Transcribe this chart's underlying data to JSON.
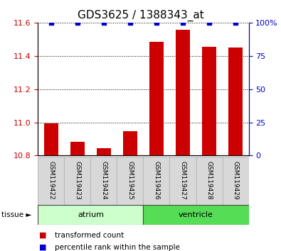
{
  "title": "GDS3625 / 1388343_at",
  "categories": [
    "GSM119422",
    "GSM119423",
    "GSM119424",
    "GSM119425",
    "GSM119426",
    "GSM119427",
    "GSM119428",
    "GSM119429"
  ],
  "red_values": [
    10.995,
    10.885,
    10.845,
    10.945,
    11.485,
    11.555,
    11.455,
    11.45
  ],
  "blue_values": [
    100,
    100,
    100,
    100,
    100,
    100,
    100,
    100
  ],
  "ylim_left": [
    10.8,
    11.6
  ],
  "ylim_right": [
    0,
    100
  ],
  "yticks_left": [
    10.8,
    11.0,
    11.2,
    11.4,
    11.6
  ],
  "yticks_right": [
    0,
    25,
    50,
    75,
    100
  ],
  "ytick_right_labels": [
    "0",
    "25",
    "50",
    "75",
    "100%"
  ],
  "tissue_groups": [
    {
      "label": "atrium",
      "indices": [
        0,
        1,
        2,
        3
      ],
      "color": "#ccffcc",
      "border_color": "#aaddaa"
    },
    {
      "label": "ventricle",
      "indices": [
        4,
        5,
        6,
        7
      ],
      "color": "#55dd55",
      "border_color": "#33bb33"
    }
  ],
  "bar_color": "#cc0000",
  "dot_color": "#0000cc",
  "bar_width": 0.55,
  "bg_color": "#ffffff",
  "title_fontsize": 11,
  "tick_fontsize": 8,
  "legend_items": [
    {
      "label": "transformed count",
      "color": "#cc0000"
    },
    {
      "label": "percentile rank within the sample",
      "color": "#0000cc"
    }
  ],
  "tissue_label": "tissue",
  "baseline": 10.8
}
